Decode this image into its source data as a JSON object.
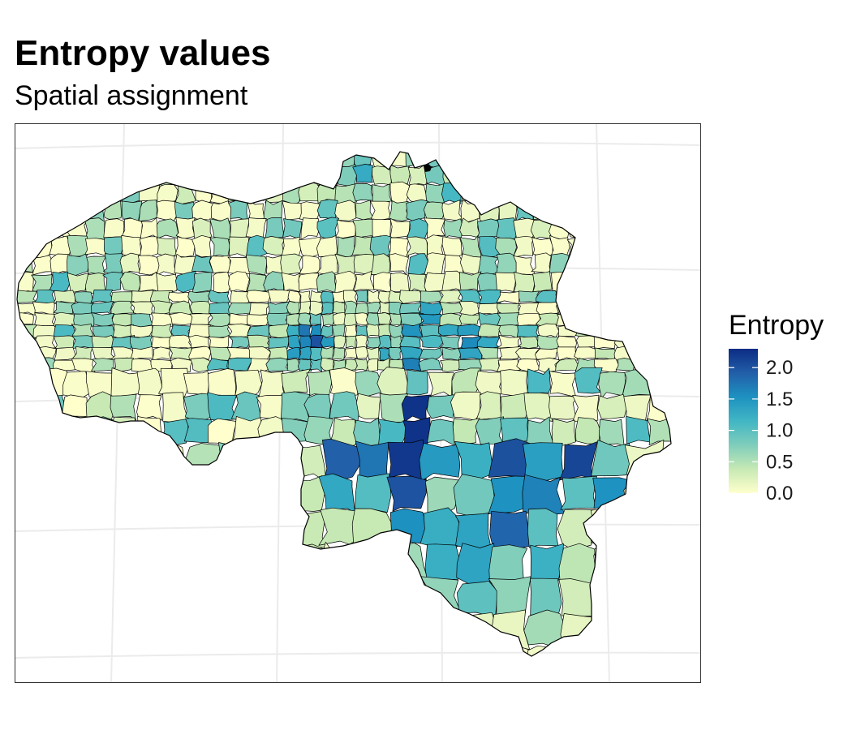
{
  "title": "Entropy values",
  "subtitle": "Spatial assignment",
  "legend": {
    "title": "Entropy",
    "ticks": [
      "0.0",
      "0.5",
      "1.0",
      "1.5",
      "2.0"
    ],
    "tick_values": [
      0.0,
      0.5,
      1.0,
      1.5,
      2.0
    ],
    "range": [
      0.0,
      2.3
    ],
    "colors": [
      "#ffffcc",
      "#c7e9b4",
      "#7fcdbb",
      "#41b6c4",
      "#1d91c0",
      "#225ea8",
      "#0c2c84"
    ]
  },
  "map": {
    "region": "Belgium",
    "units": "municipalities",
    "fill_variable": "Entropy",
    "border_color": "#000000",
    "background": "#ffffff",
    "graticule": true
  }
}
